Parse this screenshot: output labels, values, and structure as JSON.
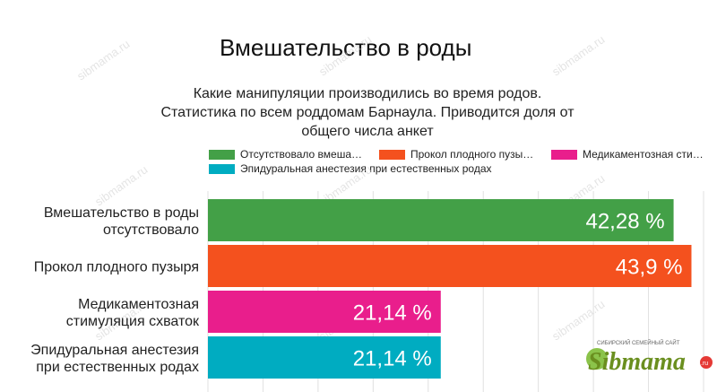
{
  "page": {
    "title": "Вмешательство в роды"
  },
  "logo": {
    "tagline": "СИБИРСКИЙ СЕМЕЙНЫЙ САЙТ",
    "name": "Sibmama",
    "suffix": ".ru"
  },
  "watermark": "sibmama.ru",
  "colors": {
    "green": "#43a047",
    "orange": "#f4511e",
    "magenta": "#e91e8c",
    "cyan": "#00acc1"
  },
  "chart_data": {
    "type": "bar",
    "orientation": "horizontal",
    "title": "Какие манипуляции производились во время родов. Статистика по всем роддомам Барнаула. Приводится доля от общего числа анкет",
    "title_lines": [
      "Какие манипуляции производились во время родов.",
      "Статистика по всем роддомам Барнаула. Приводится доля от",
      "общего числа анкет"
    ],
    "legend_position": "top",
    "legend": [
      {
        "label": "Отсутствовало вмеша…",
        "color": "#43a047"
      },
      {
        "label": "Прокол плодного пузы…",
        "color": "#f4511e"
      },
      {
        "label": "Медикаментозная сти…",
        "color": "#e91e8c"
      },
      {
        "label": "Эпидуральная анестезия при естественных родах",
        "color": "#00acc1"
      }
    ],
    "categories": [
      [
        "Вмешательство в роды",
        "отсутствовало"
      ],
      [
        "Прокол плодного пузыря"
      ],
      [
        "Медикаментозная",
        "стимуляция схваток"
      ],
      [
        "Эпидуральная анестезия",
        "при естественных родах"
      ]
    ],
    "values": [
      42.28,
      43.9,
      21.14,
      21.14
    ],
    "value_labels": [
      "42,28 %",
      "43,9 %",
      "21,14 %",
      "21,14 %"
    ],
    "colors": [
      "#43a047",
      "#f4511e",
      "#e91e8c",
      "#00acc1"
    ],
    "xlim": [
      0,
      45
    ],
    "grid": true
  }
}
